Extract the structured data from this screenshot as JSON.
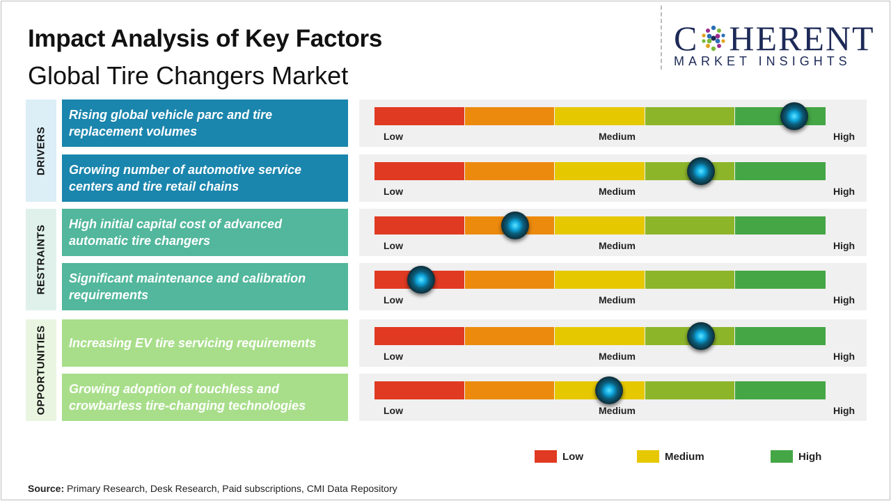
{
  "header": {
    "title": "Impact Analysis of Key Factors",
    "subtitle": "Global Tire Changers Market"
  },
  "logo": {
    "top_left": "C",
    "top_right": "HERENT",
    "bottom": "MARKET INSIGHTS"
  },
  "colors": {
    "low": "#e03a22",
    "low_medium": "#ec8a0e",
    "medium": "#e6c800",
    "medium_high": "#8db52a",
    "high": "#45a645",
    "drivers_box": "#1a85ad",
    "restraints_box": "#52b79c",
    "opportunities_box": "#a8de8a",
    "drivers_label_bg": "#dceef6",
    "restraints_label_bg": "#dff1ea",
    "opportunities_label_bg": "#e9f5e1"
  },
  "chart_data": {
    "type": "gauge",
    "scale": [
      "Low",
      "Medium",
      "High"
    ],
    "range": [
      0,
      5
    ],
    "categories": [
      {
        "name": "DRIVERS",
        "factors": [
          {
            "label": "Rising global vehicle parc and tire replacement volumes",
            "impact": 4.65
          },
          {
            "label": "Growing number of automotive service centers and tire retail chains",
            "impact": 3.62
          }
        ]
      },
      {
        "name": "RESTRAINTS",
        "factors": [
          {
            "label": "High initial capital cost of advanced automatic tire changers",
            "impact": 1.56
          },
          {
            "label": "Significant maintenance and calibration requirements",
            "impact": 0.52
          }
        ]
      },
      {
        "name": "OPPORTUNITIES",
        "factors": [
          {
            "label": "Increasing EV tire servicing requirements",
            "impact": 3.62
          },
          {
            "label": "Growing adoption of touchless and crowbarless tire-changing technologies",
            "impact": 2.6
          }
        ]
      }
    ],
    "legend": [
      "Low",
      "Medium",
      "High"
    ]
  },
  "source": {
    "label": "Source:",
    "text": "Primary Research, Desk Research, Paid subscriptions, CMI Data Repository"
  }
}
